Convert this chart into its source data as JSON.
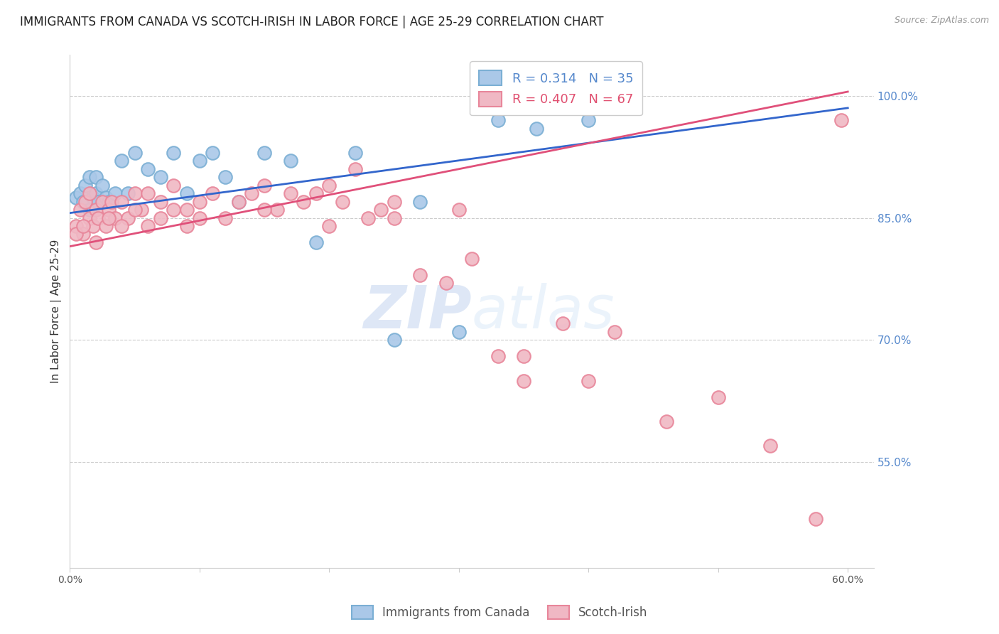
{
  "title": "IMMIGRANTS FROM CANADA VS SCOTCH-IRISH IN LABOR FORCE | AGE 25-29 CORRELATION CHART",
  "source": "Source: ZipAtlas.com",
  "ylabel": "In Labor Force | Age 25-29",
  "xlim": [
    0.0,
    0.62
  ],
  "ylim": [
    0.42,
    1.05
  ],
  "xtick_vals": [
    0.0,
    0.1,
    0.2,
    0.3,
    0.4,
    0.5,
    0.6
  ],
  "xticklabels": [
    "0.0%",
    "",
    "",
    "",
    "",
    "",
    "60.0%"
  ],
  "yticks_right": [
    0.55,
    0.7,
    0.85,
    1.0
  ],
  "ytick_right_labels": [
    "55.0%",
    "70.0%",
    "85.0%",
    "100.0%"
  ],
  "grid_color": "#cccccc",
  "background_color": "#ffffff",
  "canada_color": "#7bafd4",
  "canada_fill": "#aac8e8",
  "scotch_color": "#e8869a",
  "scotch_fill": "#f0b8c4",
  "canada_R": 0.314,
  "canada_N": 35,
  "scotch_R": 0.407,
  "scotch_N": 67,
  "legend_label_canada": "Immigrants from Canada",
  "legend_label_scotch": "Scotch-Irish",
  "canada_x": [
    0.005,
    0.008,
    0.01,
    0.012,
    0.015,
    0.015,
    0.018,
    0.02,
    0.02,
    0.022,
    0.025,
    0.028,
    0.03,
    0.035,
    0.04,
    0.045,
    0.05,
    0.06,
    0.07,
    0.08,
    0.09,
    0.1,
    0.11,
    0.12,
    0.13,
    0.15,
    0.17,
    0.19,
    0.22,
    0.25,
    0.27,
    0.3,
    0.33,
    0.36,
    0.4
  ],
  "canada_y": [
    0.875,
    0.88,
    0.87,
    0.89,
    0.86,
    0.9,
    0.875,
    0.88,
    0.9,
    0.87,
    0.89,
    0.875,
    0.87,
    0.88,
    0.92,
    0.88,
    0.93,
    0.91,
    0.9,
    0.93,
    0.88,
    0.92,
    0.93,
    0.9,
    0.87,
    0.93,
    0.92,
    0.82,
    0.93,
    0.7,
    0.87,
    0.71,
    0.97,
    0.96,
    0.97
  ],
  "scotch_x": [
    0.005,
    0.008,
    0.01,
    0.012,
    0.015,
    0.015,
    0.018,
    0.02,
    0.022,
    0.025,
    0.028,
    0.03,
    0.032,
    0.035,
    0.04,
    0.045,
    0.05,
    0.055,
    0.06,
    0.07,
    0.08,
    0.09,
    0.1,
    0.11,
    0.12,
    0.13,
    0.14,
    0.15,
    0.16,
    0.17,
    0.18,
    0.19,
    0.2,
    0.21,
    0.22,
    0.23,
    0.24,
    0.25,
    0.27,
    0.29,
    0.31,
    0.33,
    0.35,
    0.38,
    0.42,
    0.46,
    0.5,
    0.54,
    0.575,
    0.595,
    0.005,
    0.01,
    0.02,
    0.03,
    0.04,
    0.05,
    0.06,
    0.07,
    0.08,
    0.09,
    0.1,
    0.15,
    0.2,
    0.25,
    0.3,
    0.35,
    0.4
  ],
  "scotch_y": [
    0.84,
    0.86,
    0.83,
    0.87,
    0.85,
    0.88,
    0.84,
    0.86,
    0.85,
    0.87,
    0.84,
    0.86,
    0.87,
    0.85,
    0.87,
    0.85,
    0.88,
    0.86,
    0.88,
    0.87,
    0.89,
    0.86,
    0.87,
    0.88,
    0.85,
    0.87,
    0.88,
    0.89,
    0.86,
    0.88,
    0.87,
    0.88,
    0.89,
    0.87,
    0.91,
    0.85,
    0.86,
    0.87,
    0.78,
    0.77,
    0.8,
    0.68,
    0.65,
    0.72,
    0.71,
    0.6,
    0.63,
    0.57,
    0.48,
    0.97,
    0.83,
    0.84,
    0.82,
    0.85,
    0.84,
    0.86,
    0.84,
    0.85,
    0.86,
    0.84,
    0.85,
    0.86,
    0.84,
    0.85,
    0.86,
    0.68,
    0.65
  ],
  "watermark_zip": "ZIP",
  "watermark_atlas": "atlas",
  "title_fontsize": 12,
  "axis_label_fontsize": 11,
  "tick_fontsize": 10
}
